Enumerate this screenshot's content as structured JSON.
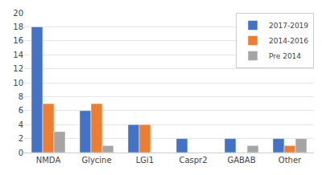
{
  "chart_data": {
    "type": "bar",
    "categories": [
      "NMDA",
      "Glycine",
      "LGi1",
      "Caspr2",
      "GABAB",
      "Other"
    ],
    "series": [
      {
        "name": "2017-2019",
        "color": "#4472C4",
        "values": [
          18,
          6,
          4,
          2,
          2,
          2
        ]
      },
      {
        "name": "2014-2016",
        "color": "#ED7D31",
        "values": [
          7,
          7,
          4,
          0,
          0,
          1
        ]
      },
      {
        "name": "Pre 2014",
        "color": "#A5A5A5",
        "values": [
          3,
          1,
          0,
          0,
          1,
          2
        ]
      }
    ],
    "ylim": [
      0,
      20
    ],
    "yticks": [
      0,
      2,
      4,
      6,
      8,
      10,
      12,
      14,
      16,
      18,
      20
    ],
    "grid": true,
    "legend": "upper right"
  }
}
